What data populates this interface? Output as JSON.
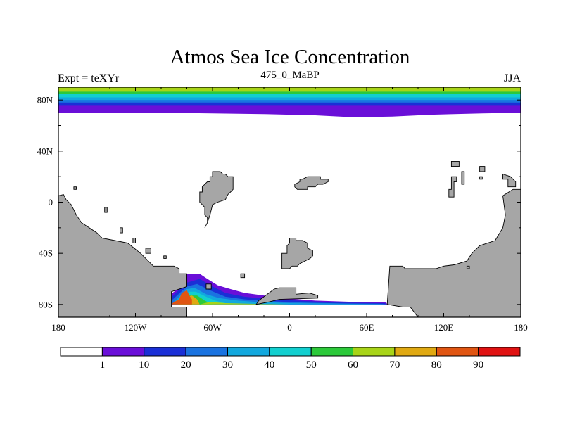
{
  "title": "Atmos Sea Ice Concentration",
  "left_label": "Expt = teXYr",
  "center_label": "475_0_MaBP",
  "right_label": "JJA",
  "chart_data": {
    "type": "heatmap",
    "title": "Atmos Sea Ice Concentration",
    "field": "sea ice concentration",
    "projection": "cylindrical equidistant",
    "xlim": [
      -180,
      180
    ],
    "ylim": [
      -90,
      90
    ],
    "x_ticks": [
      {
        "value": -180,
        "label": "180"
      },
      {
        "value": -120,
        "label": "120W"
      },
      {
        "value": -60,
        "label": "60W"
      },
      {
        "value": 0,
        "label": "0"
      },
      {
        "value": 60,
        "label": "60E"
      },
      {
        "value": 120,
        "label": "120E"
      },
      {
        "value": 180,
        "label": "180"
      }
    ],
    "y_ticks": [
      {
        "value": 80,
        "label": "80N"
      },
      {
        "value": 40,
        "label": "40N"
      },
      {
        "value": 0,
        "label": "0"
      },
      {
        "value": -40,
        "label": "40S"
      },
      {
        "value": -80,
        "label": "80S"
      }
    ],
    "colorbar": {
      "levels": [
        1,
        10,
        20,
        30,
        40,
        50,
        60,
        70,
        80,
        90
      ],
      "colors": [
        "#ffffff",
        "#6a0fd8",
        "#1a2fd6",
        "#1a73e0",
        "#12a8de",
        "#12cfcf",
        "#2cc93a",
        "#a8d418",
        "#e0a912",
        "#e05512",
        "#e01212"
      ]
    },
    "land_color": "#a6a6a6",
    "north_ice_bands": [
      {
        "from": 90,
        "to": 86.5,
        "value": 62
      },
      {
        "from": 86.5,
        "to": 84.5,
        "value": 55
      },
      {
        "from": 84.5,
        "to": 82,
        "value": 45
      },
      {
        "from": 82,
        "to": 80,
        "value": 35
      },
      {
        "from": 80,
        "to": 78,
        "value": 25
      },
      {
        "from": 78,
        "to": 76,
        "value": 15
      },
      {
        "from": 76,
        "to": 74.5,
        "value": 5
      }
    ],
    "north_ice_edge": [
      [
        -180,
        70
      ],
      [
        -140,
        70
      ],
      [
        -100,
        70
      ],
      [
        -60,
        69.5
      ],
      [
        -20,
        69
      ],
      [
        20,
        68
      ],
      [
        50,
        66.5
      ],
      [
        80,
        67
      ],
      [
        110,
        68.5
      ],
      [
        150,
        69.5
      ],
      [
        180,
        70
      ]
    ],
    "land_masses": [
      [
        [
          -180,
          -90
        ],
        [
          -180,
          5
        ],
        [
          -176,
          6
        ],
        [
          -174,
          2
        ],
        [
          -170,
          -2
        ],
        [
          -166,
          -10
        ],
        [
          -162,
          -16
        ],
        [
          -156,
          -20
        ],
        [
          -150,
          -24
        ],
        [
          -146,
          -28
        ],
        [
          -136,
          -30
        ],
        [
          -126,
          -32
        ],
        [
          -116,
          -40
        ],
        [
          -106,
          -50
        ],
        [
          -90,
          -50
        ],
        [
          -86,
          -52
        ],
        [
          -86,
          -56
        ],
        [
          -80,
          -56
        ],
        [
          -80,
          -66
        ],
        [
          -92,
          -70
        ],
        [
          -92,
          -82
        ],
        [
          -80,
          -82
        ],
        [
          -80,
          -90
        ]
      ],
      [
        [
          -26,
          -80
        ],
        [
          -24,
          -77
        ],
        [
          -12,
          -68
        ],
        [
          -8,
          -67
        ],
        [
          5,
          -67
        ],
        [
          5,
          -72
        ],
        [
          15,
          -71
        ],
        [
          22,
          -73
        ],
        [
          22,
          -75
        ],
        [
          -8,
          -76
        ],
        [
          -16,
          -78
        ]
      ],
      [
        [
          76,
          -80
        ],
        [
          78,
          -50
        ],
        [
          88,
          -50
        ],
        [
          90,
          -52
        ],
        [
          114,
          -52
        ],
        [
          120,
          -50
        ],
        [
          128,
          -49
        ],
        [
          138,
          -46
        ],
        [
          142,
          -40
        ],
        [
          148,
          -34
        ],
        [
          160,
          -30
        ],
        [
          166,
          -20
        ],
        [
          168,
          -10
        ],
        [
          166,
          5
        ],
        [
          174,
          10
        ],
        [
          180,
          10
        ],
        [
          180,
          -90
        ],
        [
          100,
          -90
        ],
        [
          94,
          -82
        ],
        [
          88,
          -82
        ]
      ],
      [
        [
          -66,
          -20
        ],
        [
          -64,
          -16
        ],
        [
          -62,
          -10
        ],
        [
          -60,
          -2
        ],
        [
          -56,
          0
        ],
        [
          -50,
          2
        ],
        [
          -48,
          6
        ],
        [
          -46,
          8
        ],
        [
          -44,
          10
        ],
        [
          -44,
          20
        ],
        [
          -48,
          20
        ],
        [
          -50,
          22
        ],
        [
          -52,
          22
        ],
        [
          -54,
          24
        ],
        [
          -60,
          24
        ],
        [
          -60,
          20
        ],
        [
          -62,
          20
        ],
        [
          -62,
          16
        ],
        [
          -64,
          16
        ],
        [
          -66,
          14
        ],
        [
          -68,
          12
        ],
        [
          -68,
          8
        ],
        [
          -70,
          8
        ],
        [
          -70,
          0
        ],
        [
          -68,
          -2
        ],
        [
          -66,
          -4
        ],
        [
          -66,
          -10
        ],
        [
          -64,
          -12
        ],
        [
          -64,
          -16
        ]
      ],
      [
        [
          5,
          -30
        ],
        [
          5,
          -28
        ],
        [
          0,
          -28
        ],
        [
          0,
          -32
        ],
        [
          -2,
          -34
        ],
        [
          -2,
          -40
        ],
        [
          -6,
          -40
        ],
        [
          -6,
          -52
        ],
        [
          0,
          -52
        ],
        [
          2,
          -50
        ],
        [
          6,
          -50
        ],
        [
          8,
          -48
        ],
        [
          12,
          -46
        ],
        [
          16,
          -44
        ],
        [
          18,
          -42
        ],
        [
          18,
          -38
        ],
        [
          14,
          -36
        ],
        [
          14,
          -32
        ],
        [
          10,
          -30
        ]
      ],
      [
        [
          6,
          10
        ],
        [
          4,
          12
        ],
        [
          4,
          14
        ],
        [
          8,
          16
        ],
        [
          8,
          18
        ],
        [
          10,
          18
        ],
        [
          14,
          20
        ],
        [
          24,
          20
        ],
        [
          24,
          18
        ],
        [
          30,
          18
        ],
        [
          30,
          16
        ],
        [
          26,
          14
        ],
        [
          22,
          14
        ],
        [
          20,
          12
        ],
        [
          14,
          12
        ],
        [
          14,
          10
        ]
      ],
      [
        [
          126,
          28
        ],
        [
          132,
          28
        ],
        [
          132,
          32
        ],
        [
          126,
          32
        ]
      ],
      [
        [
          124,
          4
        ],
        [
          128,
          4
        ],
        [
          128,
          16
        ],
        [
          130,
          16
        ],
        [
          130,
          20
        ],
        [
          126,
          20
        ],
        [
          126,
          10
        ],
        [
          124,
          10
        ]
      ],
      [
        [
          134,
          14
        ],
        [
          136,
          14
        ],
        [
          136,
          24
        ],
        [
          134,
          24
        ]
      ],
      [
        [
          166,
          18
        ],
        [
          170,
          18
        ],
        [
          170,
          12
        ],
        [
          176,
          12
        ],
        [
          176,
          16
        ],
        [
          172,
          20
        ],
        [
          166,
          22
        ]
      ],
      [
        [
          148,
          18
        ],
        [
          150,
          18
        ],
        [
          150,
          20
        ],
        [
          148,
          20
        ]
      ],
      [
        [
          148,
          24
        ],
        [
          152,
          24
        ],
        [
          152,
          28
        ],
        [
          148,
          28
        ]
      ],
      [
        [
          -168,
          10
        ],
        [
          -166,
          10
        ],
        [
          -166,
          12
        ],
        [
          -168,
          12
        ]
      ],
      [
        [
          -144,
          -4
        ],
        [
          -142,
          -4
        ],
        [
          -142,
          -8
        ],
        [
          -144,
          -8
        ]
      ],
      [
        [
          -132,
          -20
        ],
        [
          -130,
          -20
        ],
        [
          -130,
          -24
        ],
        [
          -132,
          -24
        ]
      ],
      [
        [
          -122,
          -28
        ],
        [
          -120,
          -28
        ],
        [
          -120,
          -32
        ],
        [
          -122,
          -32
        ]
      ],
      [
        [
          -112,
          -36
        ],
        [
          -108,
          -36
        ],
        [
          -108,
          -40
        ],
        [
          -112,
          -40
        ]
      ],
      [
        [
          -98,
          -42
        ],
        [
          -96,
          -42
        ],
        [
          -96,
          -44
        ],
        [
          -98,
          -44
        ]
      ],
      [
        [
          -38,
          -56
        ],
        [
          -35,
          -56
        ],
        [
          -35,
          -59
        ],
        [
          -38,
          -59
        ]
      ],
      [
        [
          -65,
          -64
        ],
        [
          -61,
          -64
        ],
        [
          -61,
          -68
        ],
        [
          -65,
          -68
        ]
      ],
      [
        [
          138,
          -50
        ],
        [
          140,
          -50
        ],
        [
          140,
          -52
        ],
        [
          138,
          -52
        ]
      ]
    ],
    "south_ice_patches": [
      {
        "value": 5,
        "polygon": [
          [
            -96,
            -80
          ],
          [
            -96,
            -75
          ],
          [
            -90,
            -70
          ],
          [
            -85,
            -66
          ],
          [
            -80,
            -56
          ],
          [
            -70,
            -56
          ],
          [
            -64,
            -60
          ],
          [
            -56,
            -65
          ],
          [
            -46,
            -68
          ],
          [
            -35,
            -71
          ],
          [
            -20,
            -73
          ],
          [
            -5,
            -75
          ],
          [
            20,
            -77
          ],
          [
            50,
            -78
          ],
          [
            75,
            -78
          ],
          [
            76,
            -80
          ]
        ]
      },
      {
        "value": 15,
        "polygon": [
          [
            -94,
            -80
          ],
          [
            -94,
            -76
          ],
          [
            -80,
            -63
          ],
          [
            -70,
            -60
          ],
          [
            -60,
            -66
          ],
          [
            -50,
            -71
          ],
          [
            -35,
            -74
          ],
          [
            -15,
            -76
          ],
          [
            5,
            -77
          ],
          [
            40,
            -78.5
          ],
          [
            74,
            -79
          ],
          [
            76,
            -80
          ]
        ]
      },
      {
        "value": 25,
        "polygon": [
          [
            -92,
            -80
          ],
          [
            -92,
            -77
          ],
          [
            -80,
            -66
          ],
          [
            -72,
            -64
          ],
          [
            -62,
            -69
          ],
          [
            -50,
            -74
          ],
          [
            -35,
            -76
          ],
          [
            -15,
            -77.5
          ],
          [
            10,
            -78.5
          ],
          [
            40,
            -79.2
          ],
          [
            70,
            -79.5
          ],
          [
            76,
            -80
          ]
        ]
      },
      {
        "value": 35,
        "polygon": [
          [
            -90,
            -80
          ],
          [
            -90,
            -78
          ],
          [
            -80,
            -68
          ],
          [
            -74,
            -67
          ],
          [
            -65,
            -72
          ],
          [
            -55,
            -75
          ],
          [
            -40,
            -77
          ],
          [
            -25,
            -78
          ],
          [
            0,
            -79
          ],
          [
            40,
            -79.5
          ],
          [
            70,
            -79.8
          ],
          [
            76,
            -80
          ]
        ]
      },
      {
        "value": 45,
        "polygon": [
          [
            -88,
            -80
          ],
          [
            -84,
            -76
          ],
          [
            -78,
            -70
          ],
          [
            -73,
            -70
          ],
          [
            -65,
            -74
          ],
          [
            -58,
            -77
          ],
          [
            -50,
            -79
          ],
          [
            -60,
            -80
          ]
        ]
      },
      {
        "value": 55,
        "polygon": [
          [
            -86,
            -80
          ],
          [
            -83,
            -77
          ],
          [
            -78,
            -73
          ],
          [
            -72,
            -73
          ],
          [
            -66,
            -77
          ],
          [
            -60,
            -80
          ]
        ]
      },
      {
        "value": 62,
        "polygon": [
          [
            -70,
            -80
          ],
          [
            -62,
            -78
          ],
          [
            -50,
            -79
          ],
          [
            -30,
            -79.5
          ],
          [
            0,
            -80
          ]
        ]
      },
      {
        "value": 75,
        "polygon": [
          [
            -86,
            -80
          ],
          [
            -84,
            -78
          ],
          [
            -80,
            -74
          ],
          [
            -76,
            -73
          ],
          [
            -72,
            -76
          ],
          [
            -70,
            -80
          ]
        ]
      },
      {
        "value": 85,
        "polygon": [
          [
            -92,
            -80
          ],
          [
            -90,
            -78
          ],
          [
            -86,
            -76
          ],
          [
            -84,
            -71
          ],
          [
            -80,
            -69
          ],
          [
            -78,
            -73
          ],
          [
            -76,
            -76
          ],
          [
            -76,
            -80
          ]
        ]
      },
      {
        "value": 62,
        "polygon": [
          [
            88,
            -80
          ],
          [
            88,
            -78
          ],
          [
            100,
            -78
          ],
          [
            100,
            -80
          ]
        ]
      },
      {
        "value": 35,
        "polygon": [
          [
            80,
            -80
          ],
          [
            80,
            -78
          ],
          [
            88,
            -78
          ],
          [
            88,
            -80
          ]
        ]
      }
    ]
  }
}
